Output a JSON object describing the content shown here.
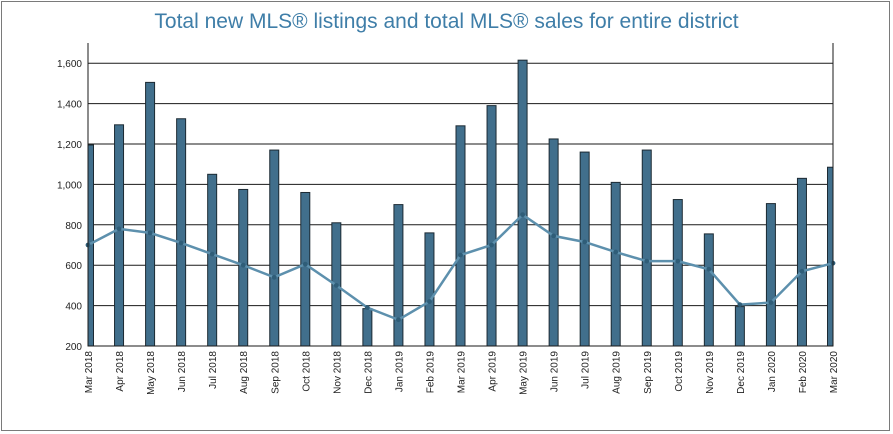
{
  "chart_data": {
    "type": "bar",
    "title": "Total new MLS® listings and total MLS® sales for entire district",
    "xlabel": "",
    "ylabel": "",
    "ylim": [
      200,
      1700
    ],
    "yticks": [
      200,
      400,
      600,
      800,
      1000,
      1200,
      1400,
      1600
    ],
    "grid": true,
    "legend": "none",
    "colors": {
      "bar": "#416f8c",
      "bar_stroke": "#1c2a33",
      "line": "#5d90ad",
      "marker": "#2f5d78"
    },
    "categories": [
      "Mar 2018",
      "Apr 2018",
      "May 2018",
      "Jun 2018",
      "Jul 2018",
      "Aug 2018",
      "Sep 2018",
      "Oct 2018",
      "Nov 2018",
      "Dec 2018",
      "Jan 2019",
      "Feb 2019",
      "Mar 2019",
      "Apr 2019",
      "May 2019",
      "Jun 2019",
      "Jul 2019",
      "Aug 2019",
      "Sep 2019",
      "Oct 2019",
      "Nov 2019",
      "Dec 2019",
      "Jan 2020",
      "Feb 2020",
      "Mar 2020"
    ],
    "series": [
      {
        "type": "bar",
        "values": [
          1195,
          1295,
          1505,
          1325,
          1050,
          975,
          1170,
          960,
          810,
          385,
          900,
          760,
          1290,
          1390,
          1615,
          1225,
          1160,
          1010,
          1170,
          925,
          755,
          395,
          905,
          1030,
          1085
        ]
      },
      {
        "type": "line",
        "values": [
          700,
          780,
          760,
          710,
          655,
          600,
          540,
          605,
          500,
          390,
          330,
          420,
          650,
          700,
          850,
          745,
          715,
          665,
          620,
          620,
          580,
          405,
          415,
          570,
          610
        ]
      }
    ]
  }
}
